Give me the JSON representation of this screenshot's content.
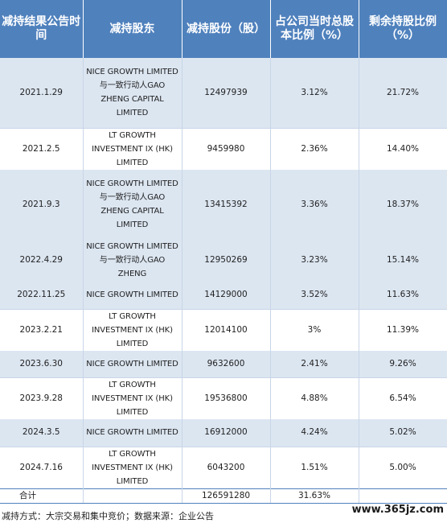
{
  "headers": [
    "减持结果公告时间",
    "减持股东",
    "减持股份（股）",
    "占公司当时总股本比例（%）",
    "剩余持股比例（%）"
  ],
  "rows": [
    {
      "date": "2021.1.29",
      "holder": "NICE GROWTH LIMITED与一致行动人GAO ZHENG CAPITAL LIMITED",
      "shares": "12497939",
      "pct_total": "3.12%",
      "remaining": "21.72%"
    },
    {
      "date": "2021.2.5",
      "holder": "LT GROWTH INVESTMENT IX (HK) LIMITED",
      "shares": "9459980",
      "pct_total": "2.36%",
      "remaining": "14.40%"
    },
    {
      "date": "2021.9.3",
      "holder": "NICE GROWTH LIMITED与一致行动人GAO ZHENG CAPITAL LIMITED",
      "shares": "13415392",
      "pct_total": "3.36%",
      "remaining": "18.37%"
    },
    {
      "date": "2022.4.29",
      "holder": "NICE GROWTH LIMITED与一致行动人GAO ZHENG",
      "shares": "12950269",
      "pct_total": "3.23%",
      "remaining": "15.14%"
    },
    {
      "date": "2022.11.25",
      "holder": "NICE GROWTH LIMITED",
      "shares": "14129000",
      "pct_total": "3.52%",
      "remaining": "11.63%"
    },
    {
      "date": "2023.2.21",
      "holder": "LT GROWTH INVESTMENT IX (HK) LIMITED",
      "shares": "12014100",
      "pct_total": "3%",
      "remaining": "11.39%"
    },
    {
      "date": "2023.6.30",
      "holder": "NICE GROWTH LIMITED",
      "shares": "9632600",
      "pct_total": "2.41%",
      "remaining": "9.26%"
    },
    {
      "date": "2023.9.28",
      "holder": "LT GROWTH INVESTMENT IX (HK) LIMITED",
      "shares": "19536800",
      "pct_total": "4.88%",
      "remaining": "6.54%"
    },
    {
      "date": "2024.3.5",
      "holder": "NICE GROWTH LIMITED",
      "shares": "16912000",
      "pct_total": "4.24%",
      "remaining": "5.02%"
    },
    {
      "date": "2024.7.16",
      "holder": "LT GROWTH INVESTMENT IX (HK) LIMITED",
      "shares": "6043200",
      "pct_total": "1.51%",
      "remaining": "5.00%"
    }
  ],
  "total": {
    "label": "合计",
    "shares": "126591280",
    "pct_total": "31.63%"
  },
  "footer": "减持方式：大宗交易和集中竞价；数据来源：企业公告",
  "watermark": "www.365jz.com",
  "colors": {
    "header_bg": "#4f81bd",
    "shaded_row": "#dce6f1"
  }
}
